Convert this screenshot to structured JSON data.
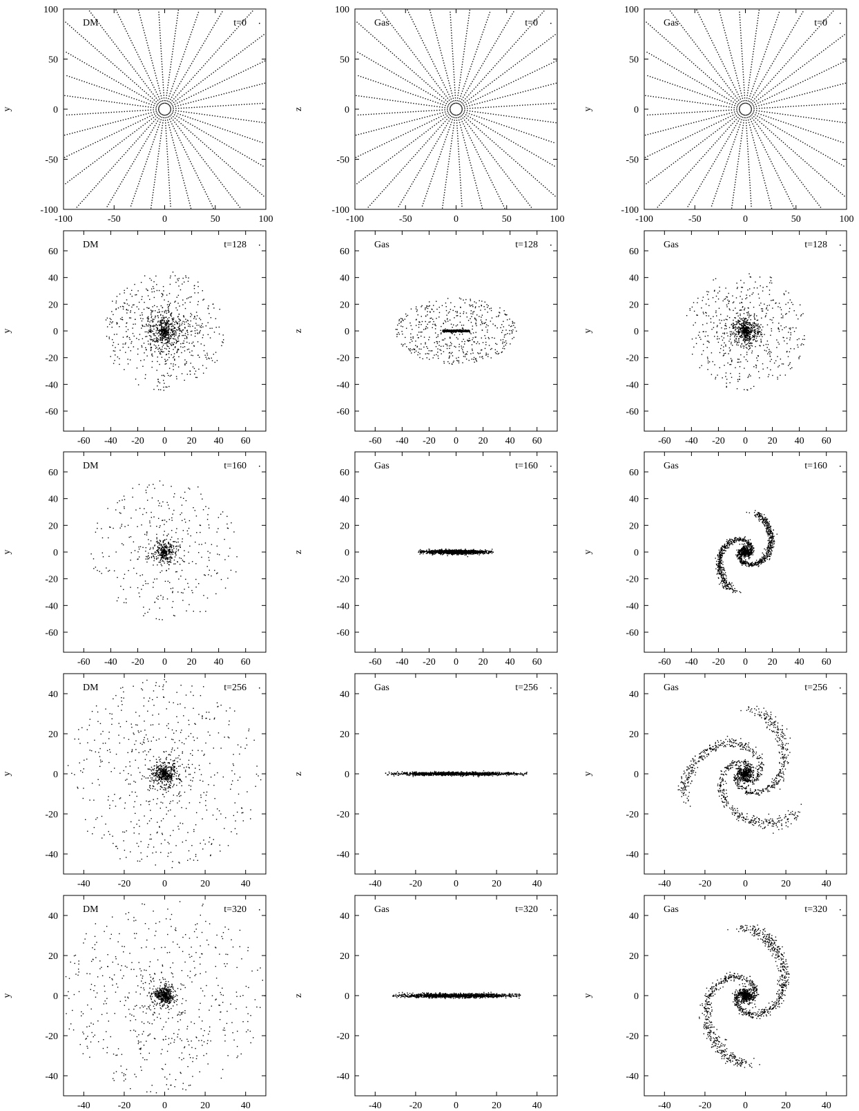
{
  "figure": {
    "columns": [
      {
        "species": "DM",
        "ylabel": "y",
        "xlabel": ""
      },
      {
        "species": "Gas",
        "ylabel": "z",
        "xlabel": ""
      },
      {
        "species": "Gas",
        "ylabel": "y",
        "xlabel": ""
      }
    ],
    "rows": [
      {
        "time_label": "t=0",
        "lim": [
          -100,
          100
        ],
        "ticks": [
          -100,
          -50,
          0,
          50,
          100
        ]
      },
      {
        "time_label": "t=128",
        "lim": [
          -75,
          75
        ],
        "ticks": [
          -60,
          -40,
          -20,
          0,
          20,
          40,
          60
        ]
      },
      {
        "time_label": "t=160",
        "lim": [
          -75,
          75
        ],
        "ticks": [
          -60,
          -40,
          -20,
          0,
          20,
          40,
          60
        ]
      },
      {
        "time_label": "t=256",
        "lim": [
          -50,
          50
        ],
        "ticks": [
          -40,
          -20,
          0,
          20,
          40
        ]
      },
      {
        "time_label": "t=320",
        "lim": [
          -50,
          50
        ],
        "ticks": [
          -40,
          -20,
          0,
          20,
          40
        ]
      }
    ]
  },
  "chart_data": [
    {
      "type": "scatter",
      "panel": "r0c0",
      "species": "DM",
      "projection": "x-y",
      "time": 0,
      "xlim": [
        -100,
        100
      ],
      "ylim": [
        -100,
        100
      ],
      "pattern": "radial-grid",
      "extent": 100,
      "xticks": [
        -100,
        -50,
        0,
        50,
        100
      ],
      "yticks": [
        -100,
        -50,
        0,
        50,
        100
      ]
    },
    {
      "type": "scatter",
      "panel": "r0c1",
      "species": "Gas",
      "projection": "x-z",
      "time": 0,
      "xlim": [
        -100,
        100
      ],
      "ylim": [
        -100,
        100
      ],
      "pattern": "radial-grid",
      "extent": 100,
      "xticks": [
        -100,
        -50,
        0,
        50,
        100
      ],
      "yticks": [
        -100,
        -50,
        0,
        50,
        100
      ]
    },
    {
      "type": "scatter",
      "panel": "r0c2",
      "species": "Gas",
      "projection": "x-y",
      "time": 0,
      "xlim": [
        -100,
        100
      ],
      "ylim": [
        -100,
        100
      ],
      "pattern": "radial-grid",
      "extent": 100,
      "xticks": [
        -100,
        -50,
        0,
        50,
        100
      ],
      "yticks": [
        -100,
        -50,
        0,
        50,
        100
      ]
    },
    {
      "type": "scatter",
      "panel": "r1c0",
      "species": "DM",
      "projection": "x-y",
      "time": 128,
      "xlim": [
        -75,
        75
      ],
      "ylim": [
        -75,
        75
      ],
      "pattern": "halo",
      "extent": 45,
      "core": 10,
      "xticks": [
        -60,
        -40,
        -20,
        0,
        20,
        40,
        60
      ],
      "yticks": [
        -60,
        -40,
        -20,
        0,
        20,
        40,
        60
      ]
    },
    {
      "type": "scatter",
      "panel": "r1c1",
      "species": "Gas",
      "projection": "x-z",
      "time": 128,
      "xlim": [
        -75,
        75
      ],
      "ylim": [
        -75,
        75
      ],
      "pattern": "thin-disk-with-envelope",
      "disk_halfwidth": 10,
      "envelope_x": 45,
      "envelope_z": 25,
      "xticks": [
        -60,
        -40,
        -20,
        0,
        20,
        40,
        60
      ],
      "yticks": [
        -60,
        -40,
        -20,
        0,
        20,
        40,
        60
      ]
    },
    {
      "type": "scatter",
      "panel": "r1c2",
      "species": "Gas",
      "projection": "x-y",
      "time": 128,
      "xlim": [
        -75,
        75
      ],
      "ylim": [
        -75,
        75
      ],
      "pattern": "halo",
      "extent": 45,
      "core": 6,
      "xticks": [
        -60,
        -40,
        -20,
        0,
        20,
        40,
        60
      ],
      "yticks": [
        -60,
        -40,
        -20,
        0,
        20,
        40,
        60
      ]
    },
    {
      "type": "scatter",
      "panel": "r2c0",
      "species": "DM",
      "projection": "x-y",
      "time": 160,
      "xlim": [
        -75,
        75
      ],
      "ylim": [
        -75,
        75
      ],
      "pattern": "shell-halo",
      "extent": 55,
      "core": 6,
      "xticks": [
        -60,
        -40,
        -20,
        0,
        20,
        40,
        60
      ],
      "yticks": [
        -60,
        -40,
        -20,
        0,
        20,
        40,
        60
      ]
    },
    {
      "type": "scatter",
      "panel": "r2c1",
      "species": "Gas",
      "projection": "x-z",
      "time": 160,
      "xlim": [
        -75,
        75
      ],
      "ylim": [
        -75,
        75
      ],
      "pattern": "thin-disk",
      "disk_halfwidth": 28,
      "thickness": 1.5,
      "xticks": [
        -60,
        -40,
        -20,
        0,
        20,
        40,
        60
      ],
      "yticks": [
        -60,
        -40,
        -20,
        0,
        20,
        40,
        60
      ]
    },
    {
      "type": "scatter",
      "panel": "r2c2",
      "species": "Gas",
      "projection": "x-y",
      "time": 160,
      "xlim": [
        -75,
        75
      ],
      "ylim": [
        -75,
        75
      ],
      "pattern": "spiral",
      "extent": 28,
      "arms": 2,
      "xticks": [
        -60,
        -40,
        -20,
        0,
        20,
        40,
        60
      ],
      "yticks": [
        -60,
        -40,
        -20,
        0,
        20,
        40,
        60
      ]
    },
    {
      "type": "scatter",
      "panel": "r3c0",
      "species": "DM",
      "projection": "x-y",
      "time": 256,
      "xlim": [
        -50,
        50
      ],
      "ylim": [
        -50,
        50
      ],
      "pattern": "halo",
      "extent": 48,
      "core": 4,
      "xticks": [
        -40,
        -20,
        0,
        20,
        40
      ],
      "yticks": [
        -40,
        -20,
        0,
        20,
        40
      ]
    },
    {
      "type": "scatter",
      "panel": "r3c1",
      "species": "Gas",
      "projection": "x-z",
      "time": 256,
      "xlim": [
        -50,
        50
      ],
      "ylim": [
        -50,
        50
      ],
      "pattern": "thin-disk",
      "disk_halfwidth": 35,
      "thickness": 0.8,
      "xticks": [
        -40,
        -20,
        0,
        20,
        40
      ],
      "yticks": [
        -40,
        -20,
        0,
        20,
        40
      ]
    },
    {
      "type": "scatter",
      "panel": "r3c2",
      "species": "Gas",
      "projection": "x-y",
      "time": 256,
      "xlim": [
        -50,
        50
      ],
      "ylim": [
        -50,
        50
      ],
      "pattern": "spiral",
      "extent": 30,
      "arms": 3,
      "xticks": [
        -40,
        -20,
        0,
        20,
        40
      ],
      "yticks": [
        -40,
        -20,
        0,
        20,
        40
      ]
    },
    {
      "type": "scatter",
      "panel": "r4c0",
      "species": "DM",
      "projection": "x-y",
      "time": 320,
      "xlim": [
        -50,
        50
      ],
      "ylim": [
        -50,
        50
      ],
      "pattern": "halo",
      "extent": 50,
      "core": 3,
      "xticks": [
        -40,
        -20,
        0,
        20,
        40
      ],
      "yticks": [
        -40,
        -20,
        0,
        20,
        40
      ]
    },
    {
      "type": "scatter",
      "panel": "r4c1",
      "species": "Gas",
      "projection": "x-z",
      "time": 320,
      "xlim": [
        -50,
        50
      ],
      "ylim": [
        -50,
        50
      ],
      "pattern": "thin-disk",
      "disk_halfwidth": 32,
      "thickness": 1.0,
      "xticks": [
        -40,
        -20,
        0,
        20,
        40
      ],
      "yticks": [
        -40,
        -20,
        0,
        20,
        40
      ]
    },
    {
      "type": "scatter",
      "panel": "r4c2",
      "species": "Gas",
      "projection": "x-y",
      "time": 320,
      "xlim": [
        -50,
        50
      ],
      "ylim": [
        -50,
        50
      ],
      "pattern": "spiral",
      "extent": 32,
      "arms": 2,
      "xticks": [
        -40,
        -20,
        0,
        20,
        40
      ],
      "yticks": [
        -40,
        -20,
        0,
        20,
        40
      ]
    }
  ]
}
